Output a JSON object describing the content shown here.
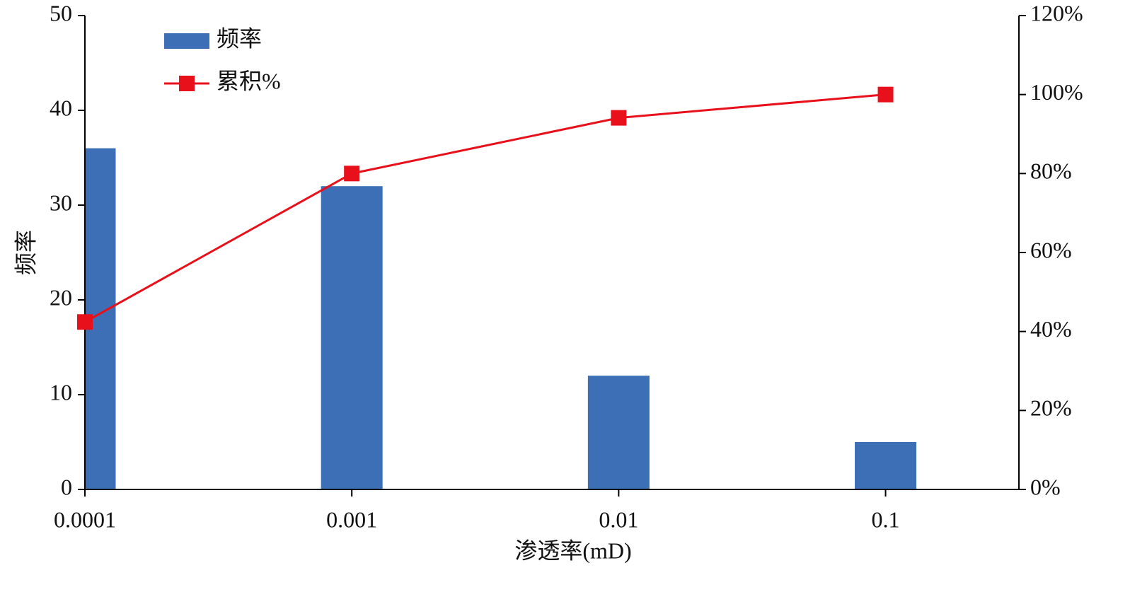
{
  "chart_data": {
    "type": "combo",
    "x": [
      0.0001,
      0.001,
      0.01,
      0.1
    ],
    "xscale": "log",
    "xlim": [
      0.0001,
      0.316
    ],
    "xticks": [
      0.0001,
      0.001,
      0.01,
      0.1
    ],
    "ylim": [
      0,
      50
    ],
    "yticks": [
      0,
      10,
      20,
      30,
      40,
      50
    ],
    "y2lim": [
      0,
      120
    ],
    "y2ticks": [
      {
        "value": 0,
        "label": "0%"
      },
      {
        "value": 20,
        "label": "20%"
      },
      {
        "value": 40,
        "label": "40%"
      },
      {
        "value": 60,
        "label": "60%"
      },
      {
        "value": 80,
        "label": "80%"
      },
      {
        "value": 100,
        "label": "100%"
      },
      {
        "value": 120,
        "label": "120%"
      }
    ],
    "xlabel": "渗透率(mD)",
    "ylabel": "频率",
    "legend": "upper left",
    "grid": false,
    "series": [
      {
        "name": "频率",
        "type": "bar",
        "color": "#3c6fb6",
        "values": [
          36,
          32,
          12,
          5
        ]
      },
      {
        "name": "累积%",
        "type": "line",
        "axis": "y2",
        "color": "#e8101a",
        "values": [
          42.4,
          80,
          94.1,
          100
        ]
      }
    ]
  }
}
